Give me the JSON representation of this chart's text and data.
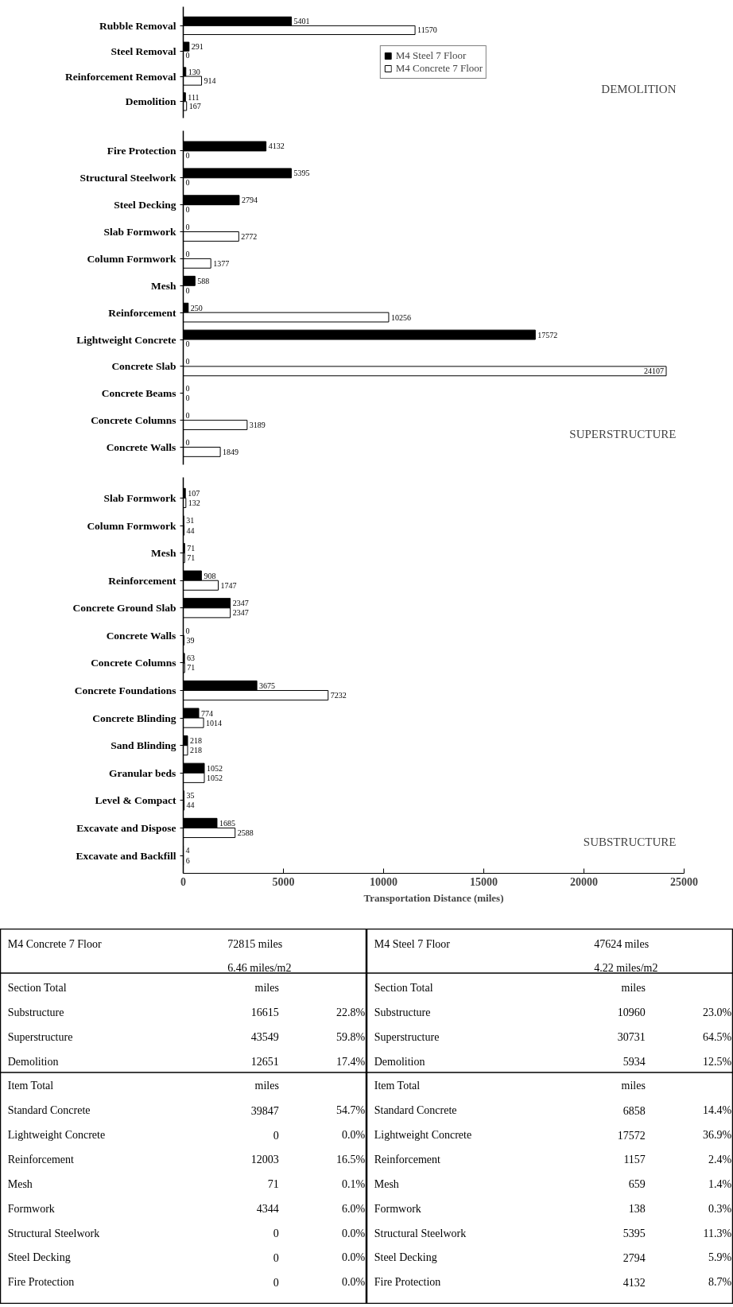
{
  "chart_data": [
    {
      "type": "bar",
      "orientation": "horizontal",
      "categories": [
        "Rubble Removal",
        "Steel Removal",
        "Reinforcement Removal",
        "Demolition"
      ],
      "series": [
        {
          "name": "M4 Steel 7 Floor",
          "color": "#000000",
          "values": [
            5401,
            291,
            130,
            111
          ]
        },
        {
          "name": "M4 Concrete 7 Floor",
          "color": "#ffffff",
          "values": [
            11570,
            0,
            914,
            167
          ]
        }
      ],
      "xlim": [
        0,
        25000
      ],
      "tick_labels": "y",
      "data_labels": true,
      "legend": "center",
      "annotations": [
        "DEMOLITION"
      ]
    },
    {
      "type": "bar",
      "orientation": "horizontal",
      "categories": [
        "Fire Protection",
        "Structural Steelwork",
        "Steel Decking",
        "Slab Formwork",
        "Column Formwork",
        "Mesh",
        "Reinforcement",
        "Lightweight Concrete",
        "Concrete Slab",
        "Concrete Beams",
        "Concrete Columns",
        "Concrete Walls"
      ],
      "series": [
        {
          "color": "#000000",
          "values": [
            4132,
            5395,
            2794,
            0,
            0,
            588,
            250,
            17572,
            0,
            0,
            0,
            0
          ]
        },
        {
          "color": "#ffffff",
          "values": [
            0,
            0,
            0,
            2772,
            1377,
            0,
            10256,
            0,
            24107,
            0,
            3189,
            1849
          ]
        }
      ],
      "xlim": [
        0,
        25000
      ],
      "tick_labels": "y",
      "data_labels": true,
      "annotations": [
        "SUPERSTRUCTURE"
      ]
    },
    {
      "type": "bar",
      "orientation": "horizontal",
      "categories": [
        "Slab Formwork",
        "Column Formwork",
        "Mesh",
        "Reinforcement",
        "Concrete Ground Slab",
        "Concrete Walls",
        "Concrete Columns",
        "Concrete Foundations",
        "Concrete Blinding",
        "Sand Blinding",
        "Granular beds",
        "Level & Compact",
        "Excavate and Dispose",
        "Excavate and Backfill"
      ],
      "series": [
        {
          "color": "#000000",
          "values": [
            107,
            31,
            71,
            908,
            2347,
            0,
            63,
            3675,
            774,
            218,
            1052,
            35,
            1685,
            4
          ]
        },
        {
          "color": "#ffffff",
          "values": [
            132,
            44,
            71,
            1747,
            2347,
            39,
            71,
            7232,
            1014,
            218,
            1052,
            44,
            2588,
            6
          ]
        }
      ],
      "xlim": [
        0,
        25000
      ],
      "xticks": [
        0,
        5000,
        10000,
        15000,
        20000,
        25000
      ],
      "xlabel": "Transportation Distance (miles)",
      "data_labels": true,
      "annotations": [
        "SUBSTRUCTURE"
      ]
    },
    {
      "type": "other",
      "title": "M4 Concrete 7 Floor",
      "annotations": [
        "72815 miles",
        "6.46 miles/m2"
      ],
      "categories": [
        "Section Total",
        "Substructure",
        "Superstructure",
        "Demolition",
        "Item Total",
        "Standard Concrete",
        "Lightweight Concrete",
        "Reinforcement",
        "Mesh",
        "Formwork",
        "Structural Steelwork",
        "Steel Decking",
        "Fire Protection"
      ],
      "cell_labels": [
        [
          "miles",
          null
        ],
        [
          "16615",
          "22.8%"
        ],
        [
          "43549",
          "59.8%"
        ],
        [
          "12651",
          "17.4%"
        ],
        [
          "miles",
          null
        ],
        [
          "39847",
          "54.7%"
        ],
        [
          "0",
          "0.0%"
        ],
        [
          "12003",
          "16.5%"
        ],
        [
          "71",
          "0.1%"
        ],
        [
          "4344",
          "6.0%"
        ],
        [
          "0",
          "0.0%"
        ],
        [
          "0",
          "0.0%"
        ],
        [
          "0",
          "0.0%"
        ]
      ]
    },
    {
      "type": "other",
      "title": "M4 Steel 7 Floor",
      "annotations": [
        "47624 miles",
        "4.22 miles/m2"
      ],
      "categories": [
        "Section Total",
        "Substructure",
        "Superstructure",
        "Demolition",
        "Item Total",
        "Standard Concrete",
        "Lightweight Concrete",
        "Reinforcement",
        "Mesh",
        "Formwork",
        "Structural Steelwork",
        "Steel Decking",
        "Fire Protection"
      ],
      "cell_labels": [
        [
          "miles",
          null
        ],
        [
          "10960",
          "23.0%"
        ],
        [
          "30731",
          "64.5%"
        ],
        [
          "5934",
          "12.5%"
        ],
        [
          "miles",
          null
        ],
        [
          "6858",
          "14.4%"
        ],
        [
          "17572",
          "36.9%"
        ],
        [
          "1157",
          "2.4%"
        ],
        [
          "659",
          "1.4%"
        ],
        [
          "138",
          "0.3%"
        ],
        [
          "5395",
          "11.3%"
        ],
        [
          "2794",
          "5.9%"
        ],
        [
          "4132",
          "8.7%"
        ]
      ]
    }
  ]
}
